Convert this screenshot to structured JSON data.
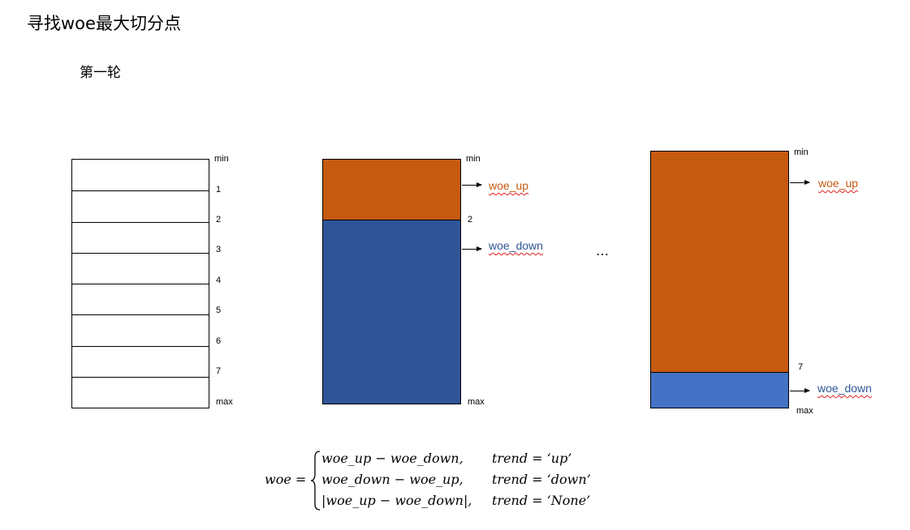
{
  "title": "寻找woe最大切分点",
  "subtitle": "第一轮",
  "diagram1": {
    "ticks": [
      "min",
      "1",
      "2",
      "3",
      "4",
      "5",
      "6",
      "7",
      "max"
    ]
  },
  "diagram2": {
    "ticks": [
      "min",
      "2",
      "max"
    ],
    "labels": {
      "up": "woe_up",
      "down": "woe_down"
    }
  },
  "ellipsis": "…",
  "diagram3": {
    "ticks": [
      "min",
      "7",
      "max"
    ],
    "labels": {
      "up": "woe_up",
      "down": "woe_down"
    }
  },
  "colors": {
    "orange": "#c55a11",
    "blue_dark": "#2f5597",
    "blue": "#4472c4",
    "squiggle": "#e02020"
  },
  "formula": {
    "lhs": "woe =",
    "cases": [
      {
        "expr": "woe_up − woe_down,",
        "cond": "trend = ‘up’"
      },
      {
        "expr": "woe_down − woe_up,",
        "cond": "trend = ‘down’"
      },
      {
        "expr": "|woe_up − woe_down|,",
        "cond": "trend = ‘None’"
      }
    ]
  }
}
